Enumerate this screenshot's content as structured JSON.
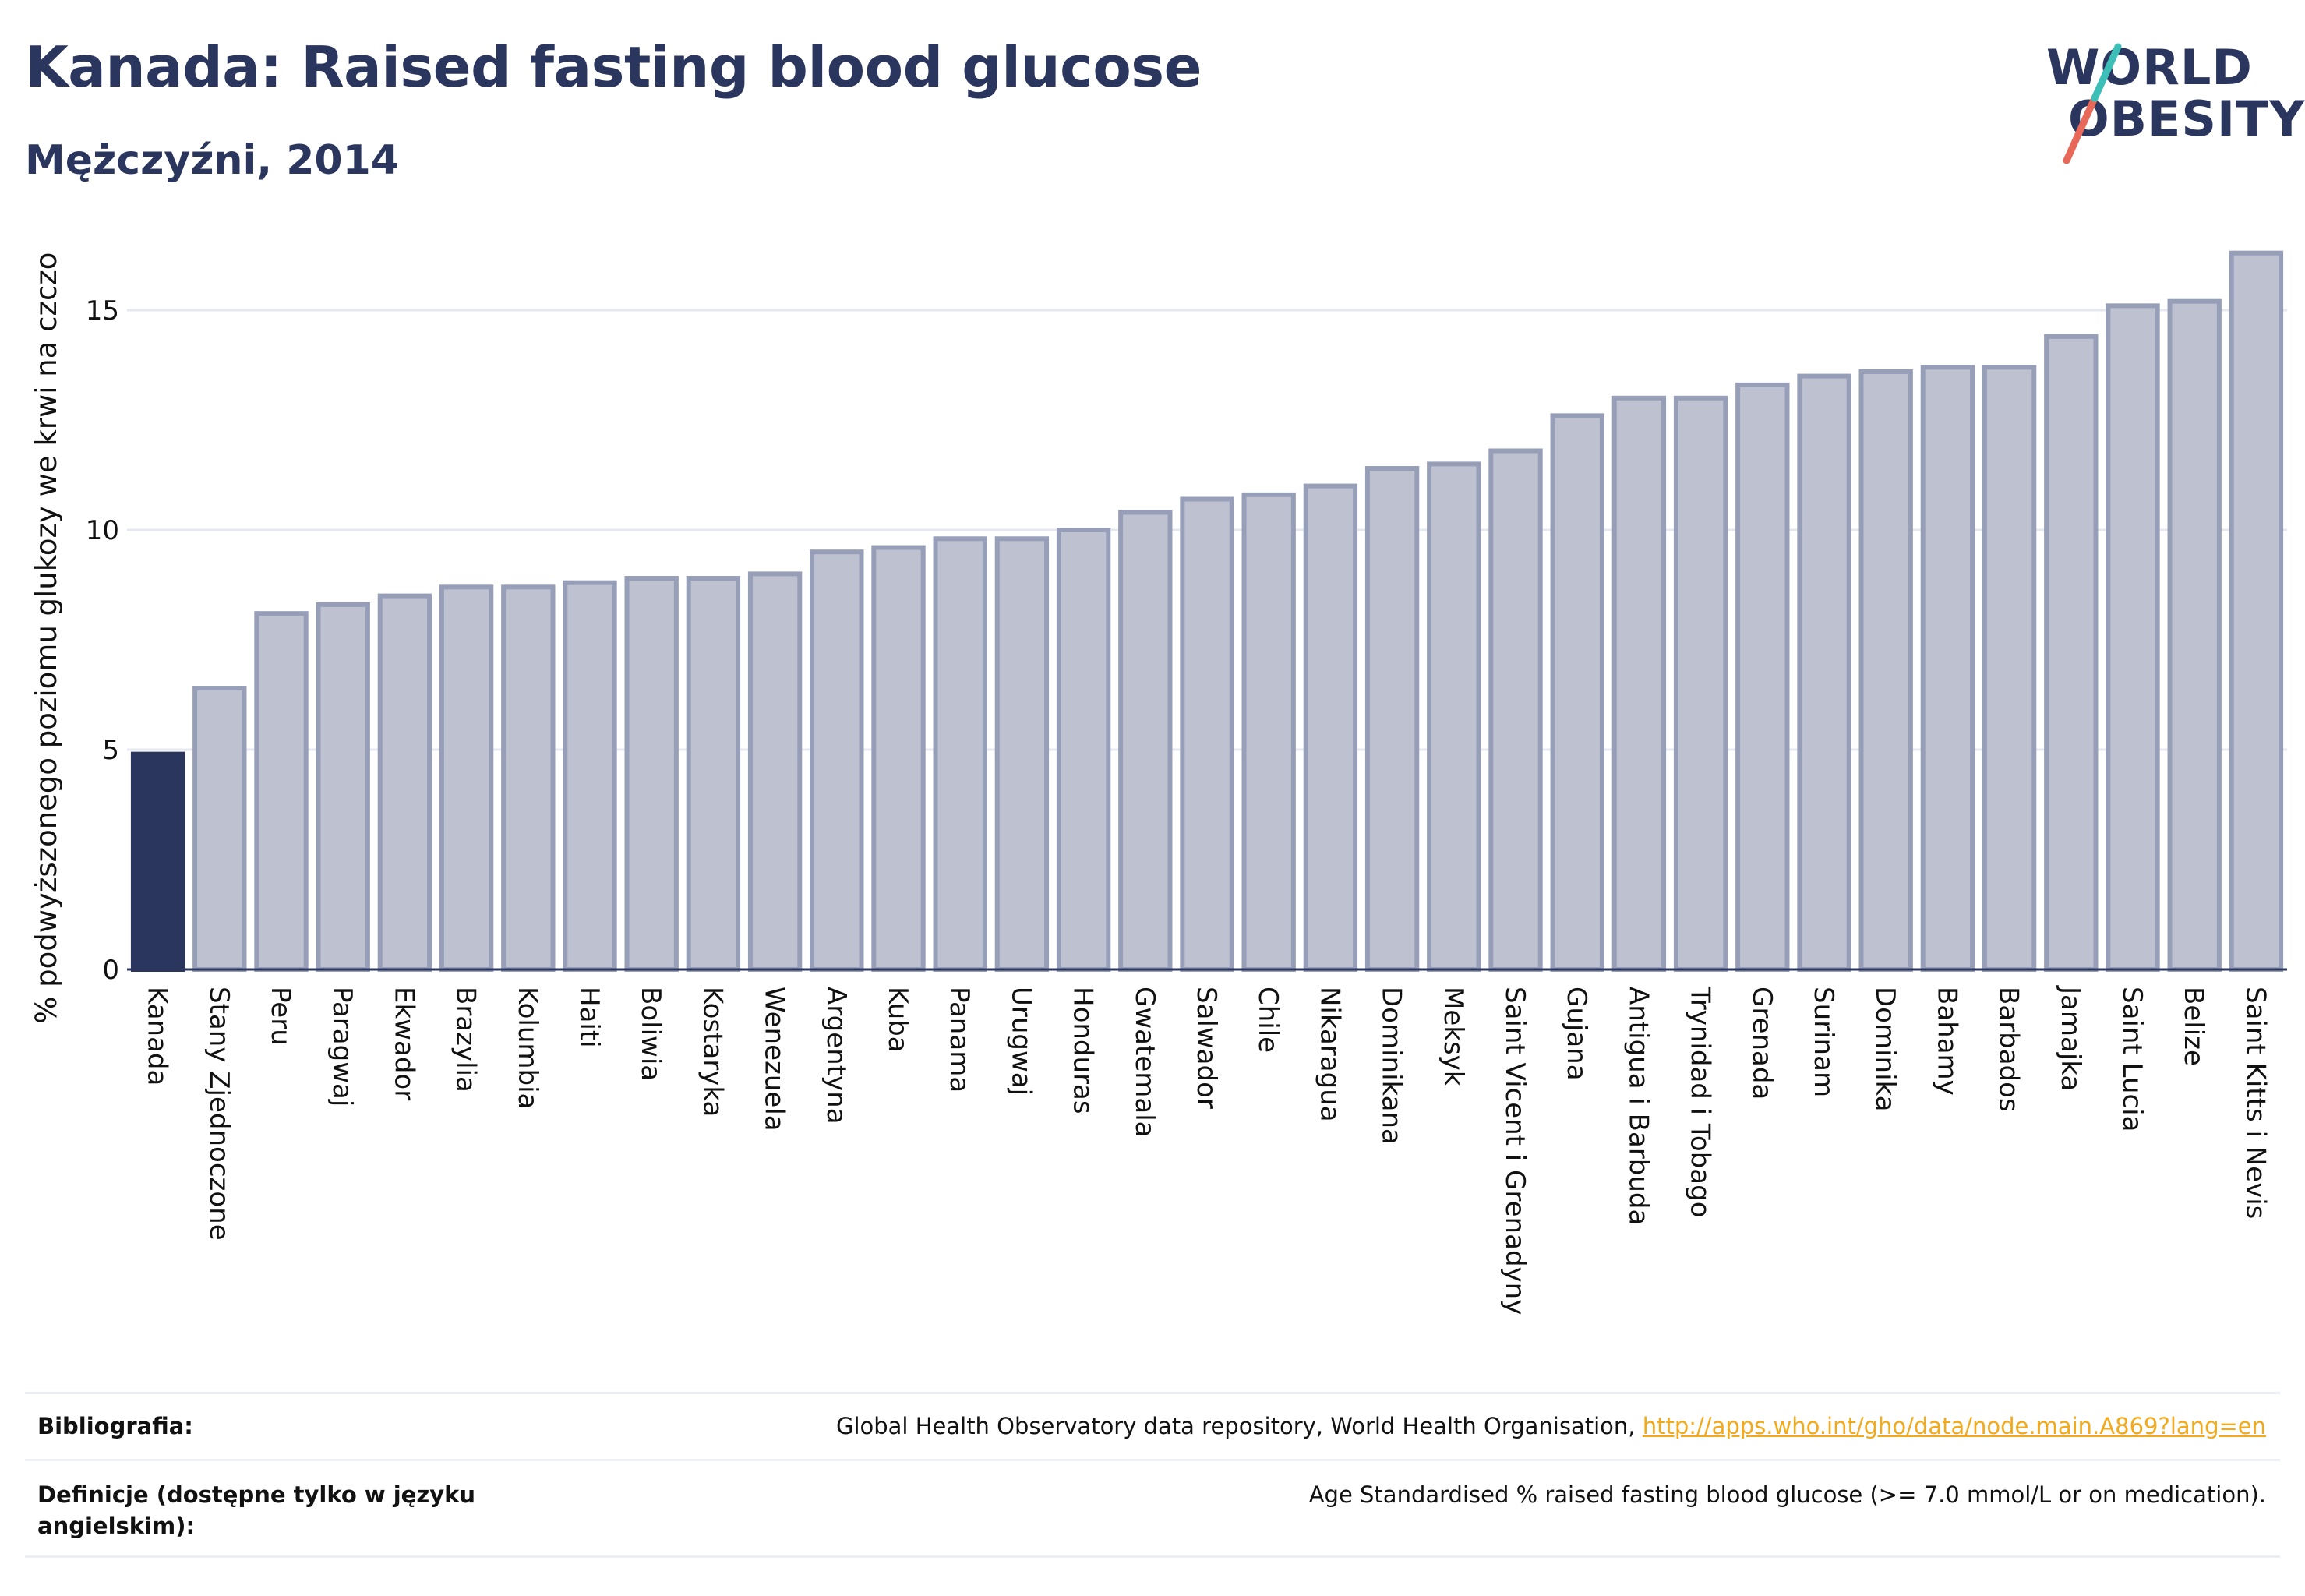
{
  "header": {
    "title": "Kanada: Raised fasting blood glucose",
    "subtitle": "Mężczyźni, 2014"
  },
  "logo": {
    "line1": "WORLD",
    "line2": "OBESITY",
    "slash_colors": [
      "#e8685a",
      "#3dbfb8"
    ]
  },
  "colors": {
    "highlight_bar": "#2b365f",
    "other_bar_fill": "#bec2d0",
    "other_bar_border": "#979eb8",
    "grid": "#e6e8ef",
    "text": "#2b365f"
  },
  "chart_data": {
    "type": "bar",
    "title": "",
    "xlabel": "",
    "ylabel": "% podwyższonego poziomu glukozy we krwi na czczo",
    "ylim": [
      0,
      16.5
    ],
    "yticks": [
      0,
      5,
      10,
      15
    ],
    "grid": true,
    "highlight": "Kanada",
    "categories": [
      "Kanada",
      "Stany Zjednoczone",
      "Peru",
      "Paragwaj",
      "Ekwador",
      "Brazylia",
      "Kolumbia",
      "Haiti",
      "Boliwia",
      "Kostaryka",
      "Wenezuela",
      "Argentyna",
      "Kuba",
      "Panama",
      "Urugwaj",
      "Honduras",
      "Gwatemala",
      "Salwador",
      "Chile",
      "Nikaragua",
      "Dominikana",
      "Meksyk",
      "Saint Vicent i Grenadyny",
      "Gujana",
      "Antigua i Barbuda",
      "Trynidad i Tobago",
      "Grenada",
      "Surinam",
      "Dominika",
      "Bahamy",
      "Barbados",
      "Jamajka",
      "Saint Lucia",
      "Belize",
      "Saint Kitts i Nevis"
    ],
    "values": [
      4.9,
      6.4,
      8.1,
      8.3,
      8.5,
      8.7,
      8.7,
      8.8,
      8.9,
      8.9,
      9.0,
      9.5,
      9.6,
      9.8,
      9.8,
      10.0,
      10.4,
      10.7,
      10.8,
      11.0,
      11.4,
      11.5,
      11.8,
      12.6,
      13.0,
      13.0,
      13.3,
      13.5,
      13.6,
      13.7,
      13.7,
      14.4,
      15.1,
      15.2,
      16.3
    ]
  },
  "footer": {
    "bibliography_label": "Bibliografia:",
    "bibliography_text": "Global Health Observatory data repository, World Health Organisation, ",
    "bibliography_link": "http://apps.who.int/gho/data/node.main.A869?lang=en",
    "definitions_label": "Definicje (dostępne tylko w języku angielskim):",
    "definitions_text": "Age Standardised % raised fasting blood glucose (>= 7.0 mmol/L or on medication)."
  }
}
